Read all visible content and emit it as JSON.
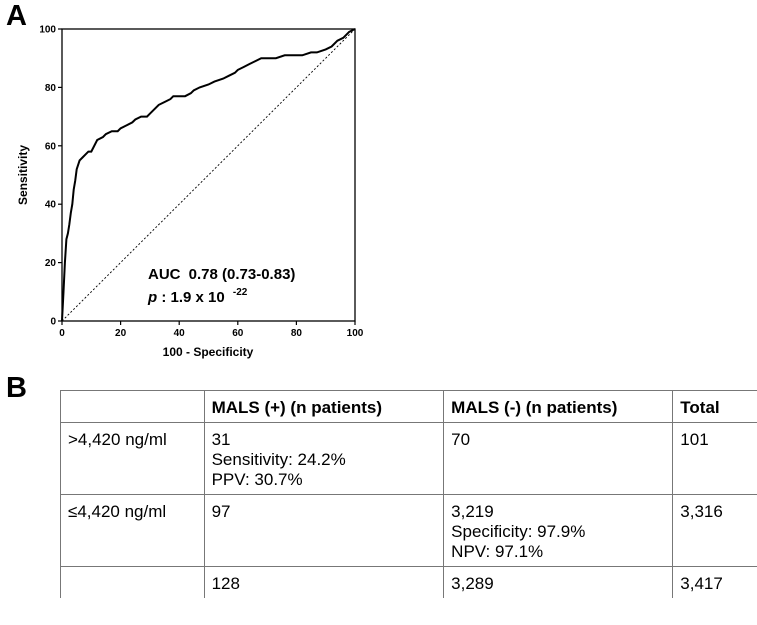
{
  "panel_a": {
    "letter": "A"
  },
  "panel_b": {
    "letter": "B"
  },
  "chart_data": {
    "type": "line",
    "xlabel": "100 - Specificity",
    "ylabel": "Sensitivity",
    "xlim": [
      0,
      100
    ],
    "ylim": [
      0,
      100
    ],
    "xticks": [
      0,
      20,
      40,
      60,
      80,
      100
    ],
    "yticks": [
      0,
      20,
      40,
      60,
      80,
      100
    ],
    "grid": false,
    "series": [
      {
        "style": "solid",
        "x": [
          0,
          0.5,
          1,
          1.5,
          2,
          2.5,
          3,
          3.5,
          4,
          4.5,
          5,
          6,
          7,
          8,
          9,
          10,
          12,
          14,
          15,
          17,
          19,
          20,
          22,
          24,
          25,
          27,
          29,
          30,
          32,
          33,
          35,
          37,
          38,
          40,
          42,
          44,
          45,
          47,
          50,
          52,
          55,
          57,
          59,
          60,
          62,
          64,
          66,
          68,
          70,
          73,
          76,
          79,
          82,
          85,
          87,
          90,
          92,
          94,
          96,
          98,
          100
        ],
        "y": [
          0,
          10,
          20,
          28,
          30,
          33,
          37,
          40,
          45,
          48,
          52,
          55,
          56,
          57,
          58,
          58,
          62,
          63,
          64,
          65,
          65,
          66,
          67,
          68,
          69,
          70,
          70,
          71,
          73,
          74,
          75,
          76,
          77,
          77,
          77,
          78,
          79,
          80,
          81,
          82,
          83,
          84,
          85,
          86,
          87,
          88,
          89,
          90,
          90,
          90,
          91,
          91,
          91,
          92,
          92,
          93,
          94,
          96,
          97,
          99,
          100
        ]
      },
      {
        "style": "dashed",
        "x": [
          0,
          100
        ],
        "y": [
          0,
          100
        ]
      }
    ],
    "annotations": {
      "auc_label": "AUC",
      "auc_value": "0.78 (0.73-0.83)",
      "p_label": "p",
      "p_value": ": 1.9 x 10",
      "p_exponent": "-22"
    }
  },
  "table": {
    "headers": [
      "",
      "MALS (+) (n patients)",
      "MALS (-) (n patients)",
      "Total"
    ],
    "rows": [
      [
        [
          "&gt;4,420 ng/ml"
        ],
        [
          "31",
          "Sensitivity: 24.2%",
          "PPV: 30.7%"
        ],
        [
          "70"
        ],
        [
          "101"
        ]
      ],
      [
        [
          "≤4,420 ng/ml"
        ],
        [
          "97"
        ],
        [
          "3,219",
          "Specificity: 97.9%",
          "NPV: 97.1%"
        ],
        [
          "3,316"
        ]
      ],
      [
        [
          ""
        ],
        [
          "128"
        ],
        [
          "3,289"
        ],
        [
          "3,417"
        ]
      ]
    ]
  }
}
